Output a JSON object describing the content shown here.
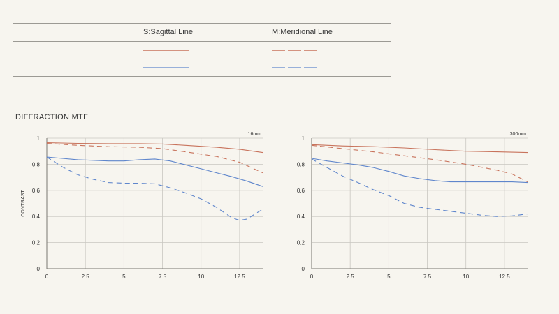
{
  "legend": {
    "sagittal_label": "S:Sagittal Line",
    "meridional_label": "M:Meridional Line"
  },
  "section_title": "DIFFRACTION MTF",
  "colors": {
    "red": "#c8735c",
    "blue": "#5f86cc",
    "grid": "#c9c7c1",
    "axis": "#7a7872"
  },
  "chart_data": [
    {
      "type": "line",
      "title": "16mm",
      "ylabel": "CONTRAST",
      "xlim": [
        0,
        14
      ],
      "ylim": [
        0,
        1
      ],
      "xticks": [
        0,
        2.5,
        5,
        7.5,
        10,
        12.5
      ],
      "xtick_labels": [
        "0",
        "2.5",
        "5",
        "7.5",
        "10",
        "12.5"
      ],
      "yticks": [
        0,
        0.2,
        0.4,
        0.6,
        0.8,
        1
      ],
      "ytick_labels": [
        "0",
        "0.2",
        "0.4",
        "0.6",
        "0.8",
        "1"
      ],
      "grid": true,
      "series": [
        {
          "color": "red",
          "dash": false,
          "x": [
            0,
            2,
            4,
            6,
            7.5,
            9,
            11,
            12.5,
            14
          ],
          "y": [
            0.965,
            0.96,
            0.958,
            0.958,
            0.955,
            0.945,
            0.93,
            0.915,
            0.89
          ]
        },
        {
          "color": "red",
          "dash": true,
          "x": [
            0,
            2,
            4,
            6,
            7.5,
            9,
            11,
            12.5,
            14
          ],
          "y": [
            0.96,
            0.945,
            0.935,
            0.93,
            0.92,
            0.895,
            0.86,
            0.815,
            0.735
          ]
        },
        {
          "color": "blue",
          "dash": false,
          "x": [
            0,
            1,
            2,
            3,
            4,
            5,
            6,
            7,
            8,
            9,
            10,
            11,
            12,
            13,
            14
          ],
          "y": [
            0.855,
            0.845,
            0.835,
            0.83,
            0.825,
            0.825,
            0.835,
            0.84,
            0.825,
            0.795,
            0.765,
            0.735,
            0.705,
            0.67,
            0.63
          ]
        },
        {
          "color": "blue",
          "dash": true,
          "x": [
            0,
            1,
            2,
            3,
            4,
            5,
            6,
            7,
            8,
            9,
            10,
            11,
            12,
            12.5,
            13,
            13.5,
            14
          ],
          "y": [
            0.855,
            0.78,
            0.72,
            0.685,
            0.66,
            0.655,
            0.655,
            0.65,
            0.62,
            0.58,
            0.535,
            0.47,
            0.39,
            0.37,
            0.38,
            0.42,
            0.455
          ]
        }
      ]
    },
    {
      "type": "line",
      "title": "300mm",
      "ylabel": "",
      "xlim": [
        0,
        14
      ],
      "ylim": [
        0,
        1
      ],
      "xticks": [
        0,
        2.5,
        5,
        7.5,
        10,
        12.5
      ],
      "xtick_labels": [
        "0",
        "2.5",
        "5",
        "7.5",
        "10",
        "12.5"
      ],
      "yticks": [
        0,
        0.2,
        0.4,
        0.6,
        0.8,
        1
      ],
      "ytick_labels": [
        "0",
        "0.2",
        "0.4",
        "0.6",
        "0.8",
        "1"
      ],
      "grid": true,
      "series": [
        {
          "color": "red",
          "dash": false,
          "x": [
            0,
            2,
            4,
            6,
            8,
            10,
            12,
            14
          ],
          "y": [
            0.95,
            0.94,
            0.935,
            0.925,
            0.912,
            0.9,
            0.895,
            0.89
          ]
        },
        {
          "color": "red",
          "dash": true,
          "x": [
            0,
            2,
            4,
            6,
            8,
            10,
            12,
            13,
            14
          ],
          "y": [
            0.945,
            0.92,
            0.895,
            0.865,
            0.835,
            0.8,
            0.755,
            0.725,
            0.665
          ]
        },
        {
          "color": "blue",
          "dash": false,
          "x": [
            0,
            1,
            2,
            3,
            4,
            5,
            6,
            7,
            8,
            9,
            10,
            11,
            12,
            13,
            14
          ],
          "y": [
            0.845,
            0.825,
            0.81,
            0.795,
            0.775,
            0.745,
            0.71,
            0.69,
            0.675,
            0.665,
            0.665,
            0.665,
            0.665,
            0.665,
            0.66
          ]
        },
        {
          "color": "blue",
          "dash": true,
          "x": [
            0,
            1,
            2,
            3,
            4,
            5,
            6,
            7,
            8,
            9,
            10,
            11,
            12,
            13,
            14
          ],
          "y": [
            0.84,
            0.775,
            0.71,
            0.66,
            0.605,
            0.56,
            0.5,
            0.47,
            0.455,
            0.44,
            0.425,
            0.41,
            0.4,
            0.405,
            0.42
          ]
        }
      ]
    }
  ]
}
